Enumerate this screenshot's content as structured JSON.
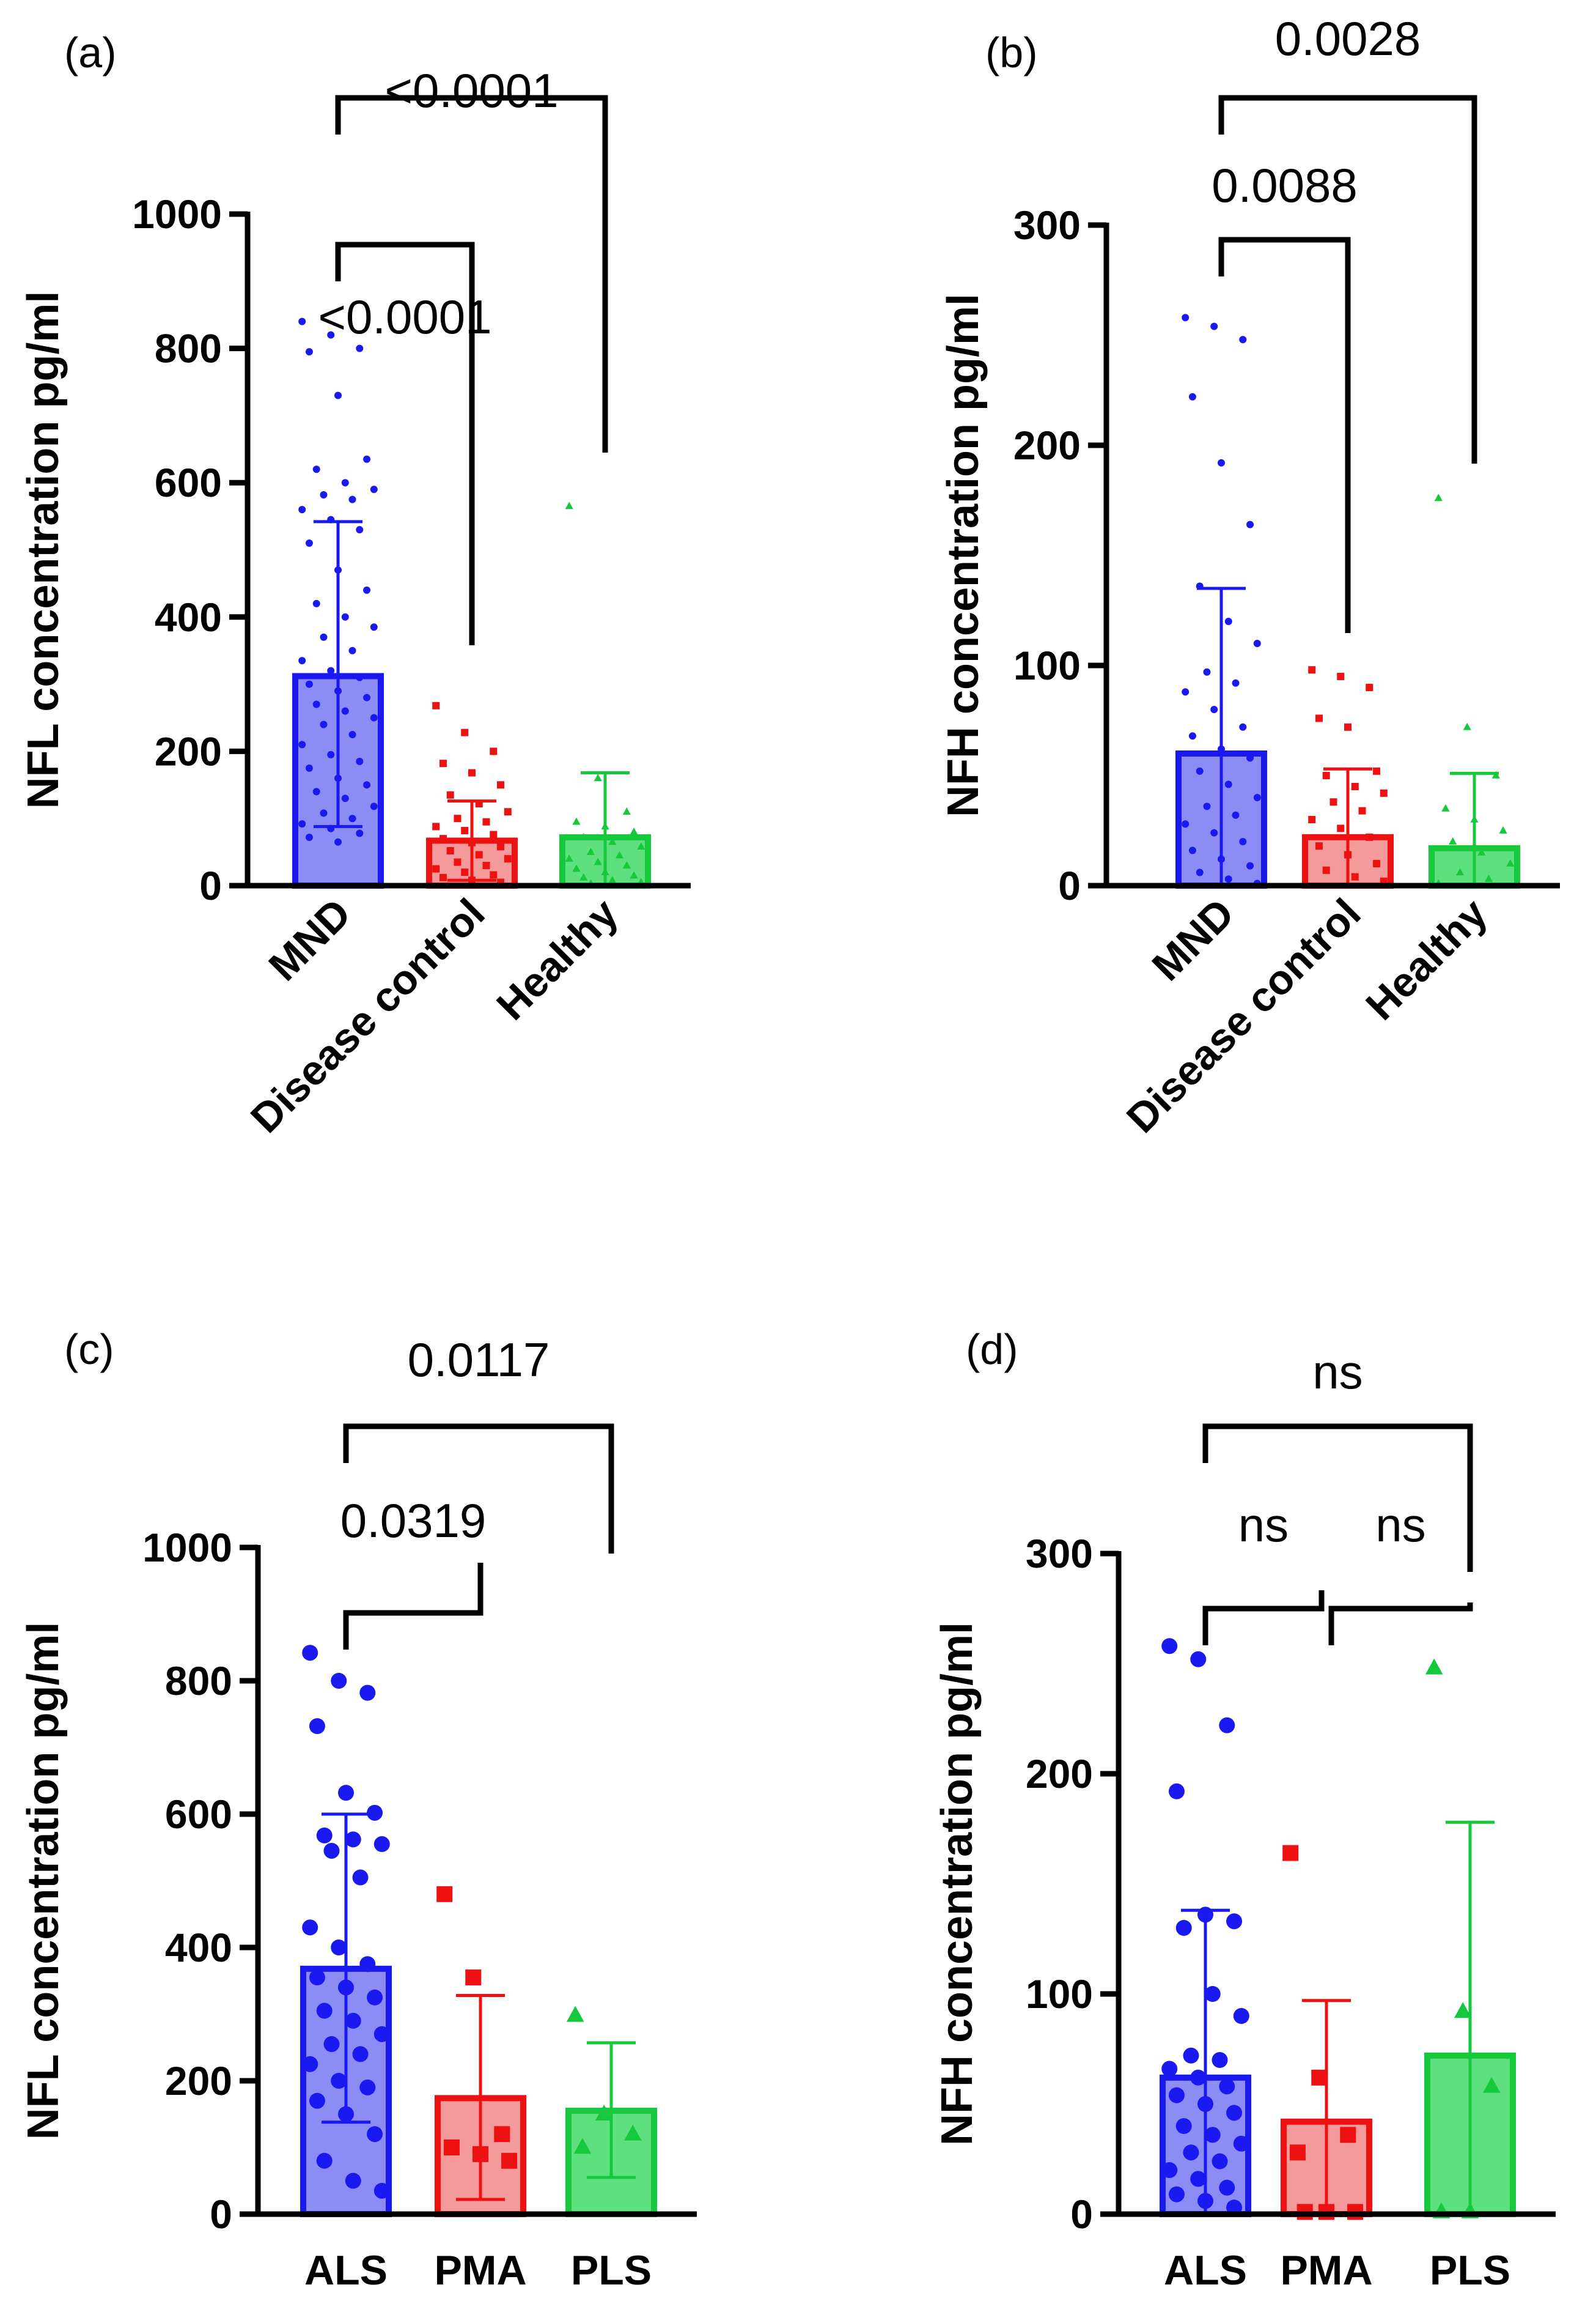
{
  "colors": {
    "blue": "#1a1af0",
    "blue_fill": "#8c8cf5",
    "red": "#ee1111",
    "red_fill": "#f59a9a",
    "green": "#16c83c",
    "green_fill": "#5fe07f"
  },
  "chart_data": [
    {
      "type": "bar",
      "panel": "(a)",
      "ylabel": "NFL concentration pg/ml",
      "ylim": [
        0,
        1000
      ],
      "yticks": [
        0,
        200,
        400,
        600,
        800,
        1000
      ],
      "categories": [
        "MND",
        "Disease control",
        "Healthy"
      ],
      "series": [
        {
          "name": "MND",
          "mean": 312,
          "sd_low": 88,
          "sd_high": 542,
          "color": "blue",
          "points": [
            840,
            820,
            800,
            795,
            730,
            635,
            620,
            600,
            590,
            582,
            575,
            560,
            545,
            530,
            510,
            470,
            440,
            420,
            400,
            385,
            370,
            350,
            335,
            320,
            310,
            300,
            290,
            280,
            270,
            260,
            250,
            240,
            225,
            210,
            195,
            185,
            175,
            160,
            150,
            140,
            130,
            118,
            108,
            100,
            92,
            85,
            78,
            72,
            65
          ]
        },
        {
          "name": "Disease control",
          "mean": 67,
          "sd_low": 8,
          "sd_high": 126,
          "color": "red",
          "points": [
            268,
            228,
            200,
            182,
            168,
            150,
            135,
            122,
            110,
            100,
            95,
            88,
            82,
            76,
            70,
            64,
            58,
            52,
            46,
            40,
            35,
            30,
            25,
            20,
            16,
            12,
            8,
            5
          ]
        },
        {
          "name": "Healthy",
          "mean": 72,
          "sd_low": 0,
          "sd_high": 168,
          "color": "green",
          "points": [
            565,
            160,
            110,
            95,
            88,
            80,
            72,
            65,
            58,
            50,
            45,
            40,
            35,
            30,
            25,
            20,
            15,
            12,
            8,
            5,
            3
          ]
        }
      ],
      "comparisons": [
        {
          "from": "MND",
          "to": "Disease control",
          "label": "<0.0001"
        },
        {
          "from": "MND",
          "to": "Healthy",
          "label": "<0.0001"
        }
      ]
    },
    {
      "type": "bar",
      "panel": "(b)",
      "ylabel": "NFH concentration pg/ml",
      "ylim": [
        0,
        300
      ],
      "yticks": [
        0,
        100,
        200,
        300
      ],
      "categories": [
        "MND",
        "Disease control",
        "Healthy"
      ],
      "series": [
        {
          "name": "MND",
          "mean": 60,
          "sd_low": 0,
          "sd_high": 135,
          "color": "blue",
          "points": [
            258,
            254,
            248,
            222,
            192,
            164,
            136,
            120,
            110,
            97,
            92,
            88,
            80,
            72,
            68,
            62,
            58,
            52,
            46,
            40,
            36,
            32,
            28,
            24,
            20,
            16,
            12,
            9,
            6,
            3,
            1
          ]
        },
        {
          "name": "Disease control",
          "mean": 22,
          "sd_low": 0,
          "sd_high": 53,
          "color": "red",
          "points": [
            98,
            95,
            90,
            76,
            72,
            52,
            50,
            45,
            42,
            38,
            34,
            30,
            26,
            22,
            18,
            14,
            10,
            7,
            4,
            2
          ]
        },
        {
          "name": "Healthy",
          "mean": 17,
          "sd_low": 0,
          "sd_high": 51,
          "color": "green",
          "points": [
            176,
            72,
            50,
            35,
            30,
            25,
            20,
            15,
            10,
            6,
            3,
            1
          ]
        }
      ],
      "comparisons": [
        {
          "from": "MND",
          "to": "Disease control",
          "label": "0.0088"
        },
        {
          "from": "MND",
          "to": "Healthy",
          "label": "0.0028"
        }
      ]
    },
    {
      "type": "bar",
      "panel": "(c)",
      "ylabel": "NFL concentration pg/ml",
      "ylim": [
        0,
        1000
      ],
      "yticks": [
        0,
        200,
        400,
        600,
        800,
        1000
      ],
      "categories": [
        "ALS",
        "PMA",
        "PLS"
      ],
      "series": [
        {
          "name": "ALS",
          "mean": 368,
          "sd_low": 138,
          "sd_high": 600,
          "color": "blue",
          "points": [
            842,
            800,
            782,
            732,
            632,
            602,
            568,
            562,
            555,
            545,
            505,
            430,
            400,
            375,
            355,
            340,
            325,
            305,
            290,
            270,
            255,
            240,
            225,
            200,
            190,
            170,
            150,
            120,
            80,
            50,
            35
          ]
        },
        {
          "name": "PMA",
          "mean": 174,
          "sd_low": 22,
          "sd_high": 328,
          "color": "red",
          "points": [
            480,
            355,
            120,
            100,
            90,
            80
          ]
        },
        {
          "name": "PLS",
          "mean": 155,
          "sd_low": 55,
          "sd_high": 257,
          "color": "green",
          "points": [
            298,
            150,
            120,
            100
          ]
        }
      ],
      "comparisons": [
        {
          "from": "ALS",
          "to": "PMA",
          "label": "0.0319"
        },
        {
          "from": "ALS",
          "to": "PLS",
          "label": "0.0117"
        }
      ]
    },
    {
      "type": "bar",
      "panel": "(d)",
      "ylabel": "NFH concentration pg/ml",
      "ylim": [
        0,
        300
      ],
      "yticks": [
        0,
        100,
        200,
        300
      ],
      "categories": [
        "ALS",
        "PMA",
        "PLS"
      ],
      "series": [
        {
          "name": "ALS",
          "mean": 62,
          "sd_low": 0,
          "sd_high": 138,
          "color": "blue",
          "points": [
            258,
            252,
            222,
            192,
            136,
            133,
            130,
            100,
            90,
            72,
            70,
            66,
            62,
            58,
            54,
            50,
            46,
            40,
            36,
            32,
            28,
            24,
            20,
            16,
            12,
            9,
            6,
            3
          ]
        },
        {
          "name": "PMA",
          "mean": 42,
          "sd_low": 0,
          "sd_high": 97,
          "color": "red",
          "points": [
            164,
            62,
            36,
            28,
            1,
            1,
            1
          ]
        },
        {
          "name": "PLS",
          "mean": 72,
          "sd_low": 0,
          "sd_high": 178,
          "color": "green",
          "points": [
            248,
            92,
            58,
            1,
            1
          ]
        }
      ],
      "comparisons": [
        {
          "from": "ALS",
          "to": "PMA",
          "label": "ns"
        },
        {
          "from": "PMA",
          "to": "PLS",
          "label": "ns"
        },
        {
          "from": "ALS",
          "to": "PLS",
          "label": "ns"
        }
      ]
    }
  ]
}
